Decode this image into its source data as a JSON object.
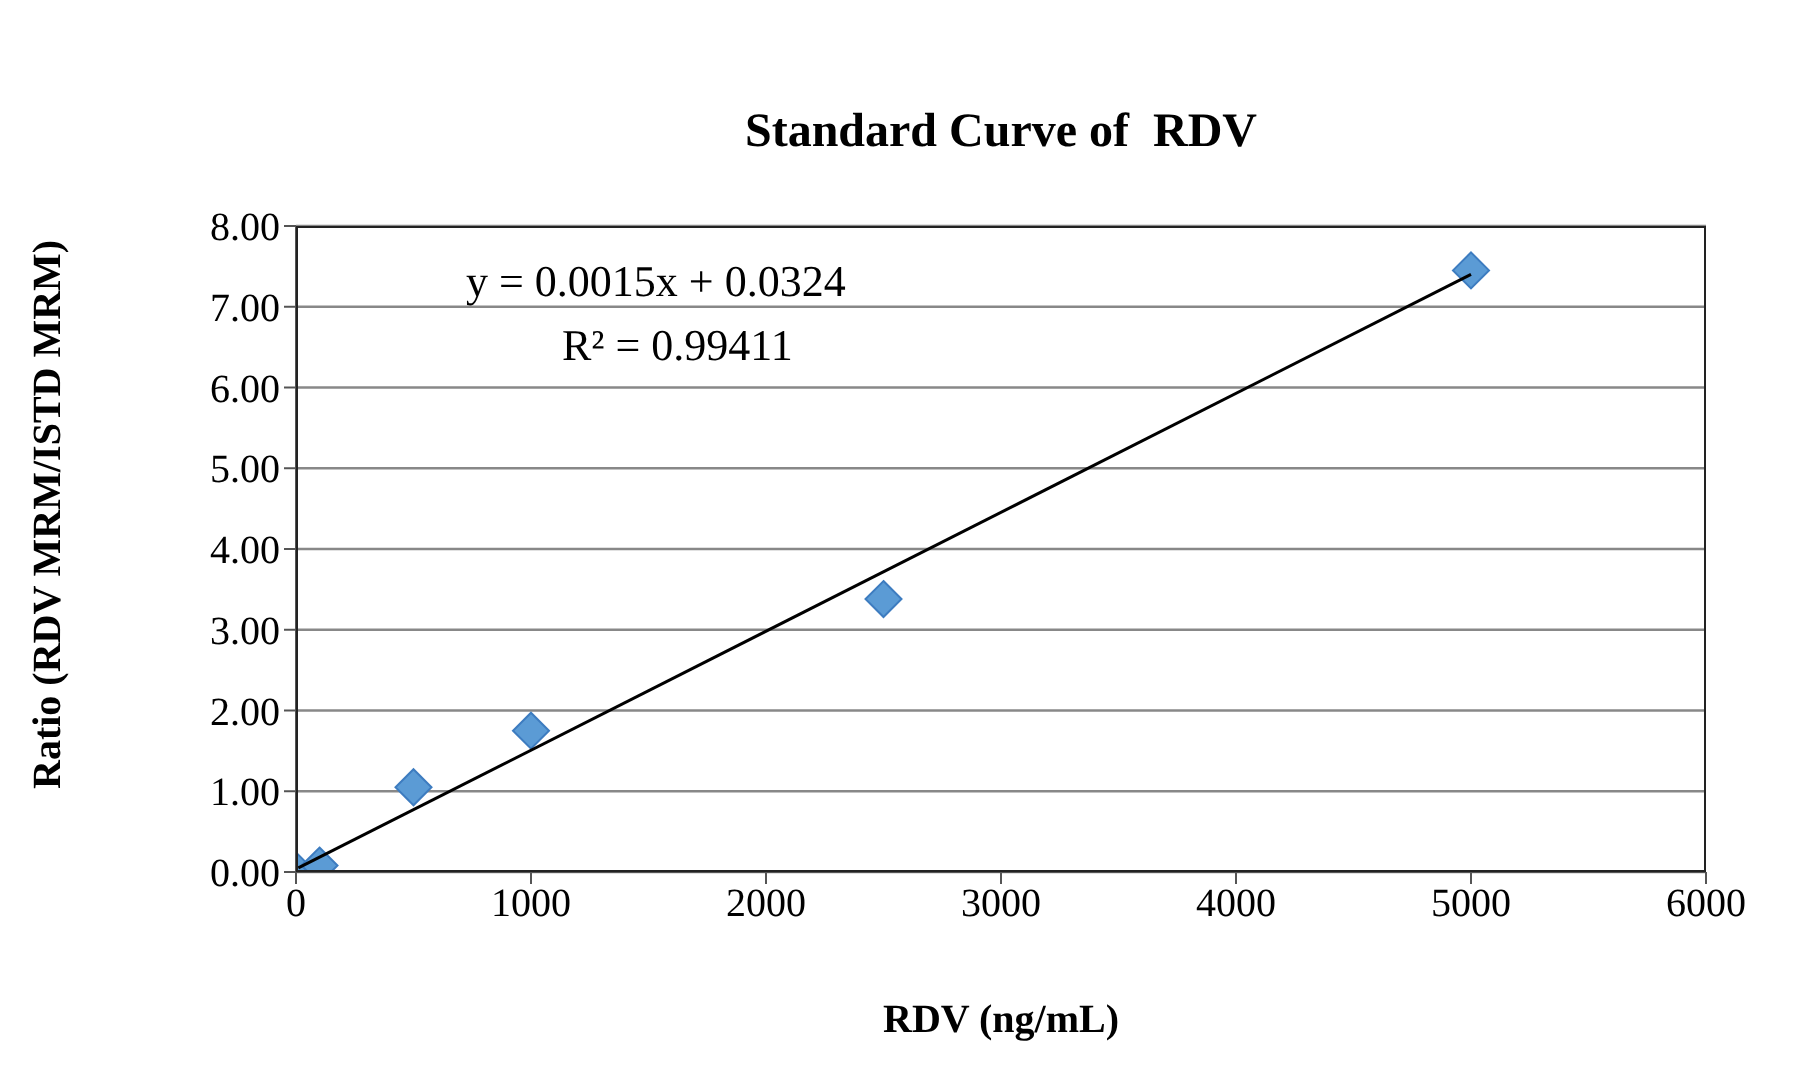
{
  "chart_data": {
    "type": "scatter",
    "title": "Standard Curve of  RDV",
    "xlabel": "RDV (ng/mL)",
    "ylabel": "Ratio (RDV MRM/ISTD MRM)",
    "series": [
      {
        "marker": "diamond",
        "color": "#5b9bd5",
        "x": [
          0,
          100,
          500,
          1000,
          2500,
          5000
        ],
        "values": [
          0.02,
          0.08,
          1.05,
          1.75,
          3.38,
          7.45
        ]
      },
      {
        "type": "line",
        "color": "#000000",
        "x": [
          10,
          5000
        ],
        "values": [
          0.05,
          7.4
        ]
      }
    ],
    "xlim": [
      0,
      6000
    ],
    "xticks": [
      0,
      1000,
      2000,
      3000,
      4000,
      5000,
      6000
    ],
    "ylim": [
      0,
      8
    ],
    "yticks": [
      {
        "value": 0,
        "label": "0.00"
      },
      {
        "value": 1,
        "label": "1.00"
      },
      {
        "value": 2,
        "label": "2.00"
      },
      {
        "value": 3,
        "label": "3.00"
      },
      {
        "value": 4,
        "label": "4.00"
      },
      {
        "value": 5,
        "label": "5.00"
      },
      {
        "value": 6,
        "label": "6.00"
      },
      {
        "value": 7,
        "label": "7.00"
      },
      {
        "value": 8,
        "label": "8.00"
      }
    ],
    "grid": "y",
    "legend": false,
    "annotations": [
      "y = 0.0015x + 0.0324",
      "R² = 0.99411"
    ]
  }
}
